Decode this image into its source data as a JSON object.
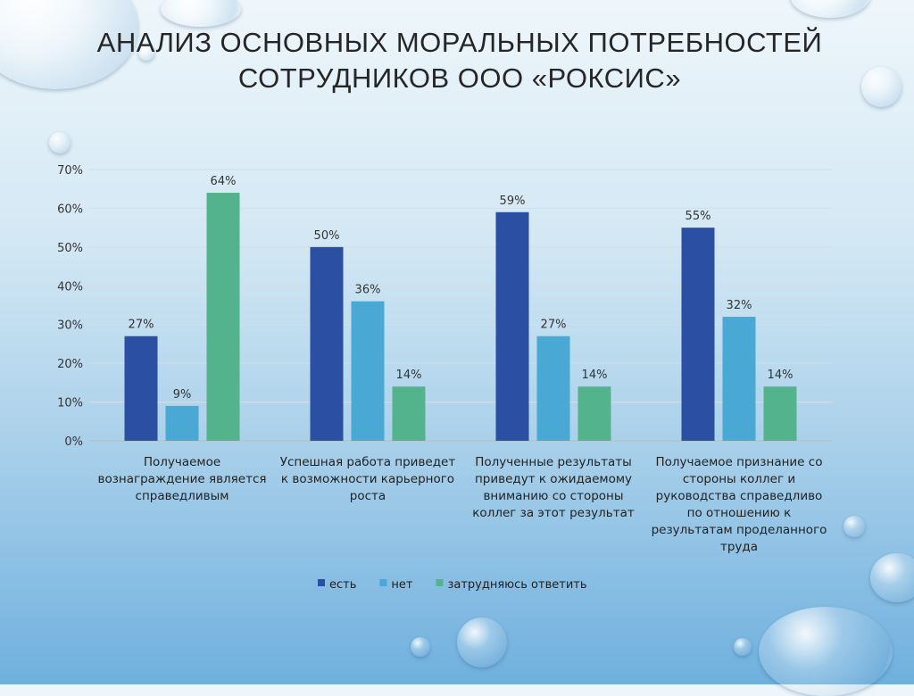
{
  "title_line1": "АНАЛИЗ ОСНОВНЫХ МОРАЛЬНЫХ ПОТРЕБНОСТЕЙ",
  "title_line2": "СОТРУДНИКОВ ООО «РОКСИС»",
  "chart_data": {
    "type": "bar",
    "categories": [
      [
        "Получаемое",
        "вознаграждение является",
        "справедливым"
      ],
      [
        "Успешная работа приведет",
        "к возможности карьерного",
        "роста"
      ],
      [
        "Полученные результаты",
        "приведут к ожидаемому",
        "вниманию со стороны",
        "коллег за этот результат"
      ],
      [
        "Получаемое признание со",
        "стороны коллег и",
        "руководства справедливо",
        "по отношению к",
        "результатам проделанного",
        "труда"
      ]
    ],
    "series": [
      {
        "name": "есть",
        "color": "#2a4fa3",
        "values": [
          27,
          50,
          59,
          55
        ]
      },
      {
        "name": "нет",
        "color": "#4aa8d4",
        "values": [
          9,
          36,
          27,
          32
        ]
      },
      {
        "name": "затрудняюсь ответить",
        "color": "#53b38c",
        "values": [
          64,
          14,
          14,
          14
        ]
      }
    ],
    "data_labels": [
      [
        "27%",
        "50%",
        "59%",
        "55%"
      ],
      [
        "9%",
        "36%",
        "27%",
        "32%"
      ],
      [
        "64%",
        "14%",
        "14%",
        "14%"
      ]
    ],
    "ylim": [
      0,
      70
    ],
    "yticks": [
      "0%",
      "10%",
      "20%",
      "30%",
      "40%",
      "50%",
      "60%",
      "70%"
    ],
    "grid": true,
    "legend": "bottom"
  }
}
